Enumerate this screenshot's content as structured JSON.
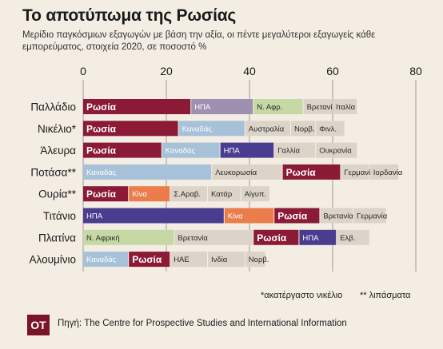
{
  "header": {
    "title": "Το αποτύπωμα της Ρωσίας",
    "subtitle": "Μερίδιο παγκόσμιων εξαγωγών με βάση την αξία, οι πέντε μεγαλύτεροι εξαγωγείς κάθε εμπορεύματος, στοιχεία 2020, σε ποσοστό %"
  },
  "footnotes": {
    "nickel": "*ακατέργαστο νικέλιο",
    "fertilizer": "** λιπάσματα"
  },
  "source": {
    "logo": "ΟΤ",
    "text": "Πηγή: The Centre for Prospective Studies and International Information"
  },
  "colors": {
    "russia": "#8b1a36",
    "usa": "#4a3d8f",
    "canada": "#a7c2d8",
    "south_africa": "#c6d9a4",
    "china": "#ea7d4b",
    "neutral": "#dcd4c8",
    "usa_alt": "#9f8fb0"
  },
  "chart_data": {
    "type": "bar",
    "orientation": "horizontal",
    "stacked": true,
    "x_ticks": [
      0,
      20,
      40,
      60,
      80
    ],
    "xlim": [
      0,
      80
    ],
    "grid": true,
    "rows": [
      {
        "label": "Παλλάδιο",
        "segments": [
          {
            "country": "Ρωσία",
            "value": 26,
            "color": "russia"
          },
          {
            "country": "ΗΠΑ",
            "value": 15,
            "color": "usa_alt"
          },
          {
            "country": "Ν. Αφρ.",
            "value": 12,
            "color": "south_africa"
          },
          {
            "country": "Βρετανία",
            "value": 7,
            "color": "neutral"
          },
          {
            "country": "Ιταλία",
            "value": 6,
            "color": "neutral"
          }
        ]
      },
      {
        "label": "Νικέλιο*",
        "segments": [
          {
            "country": "Ρωσία",
            "value": 23,
            "color": "russia"
          },
          {
            "country": "Καναδάς",
            "value": 16,
            "color": "canada"
          },
          {
            "country": "Αυστραλία",
            "value": 11,
            "color": "neutral"
          },
          {
            "country": "Νορβ.",
            "value": 6,
            "color": "neutral"
          },
          {
            "country": "Φινλ.",
            "value": 7,
            "color": "neutral"
          }
        ]
      },
      {
        "label": "Άλευρα",
        "segments": [
          {
            "country": "Ρωσία",
            "value": 19,
            "color": "russia"
          },
          {
            "country": "Καναδάς",
            "value": 14,
            "color": "canada"
          },
          {
            "country": "ΗΠΑ",
            "value": 13,
            "color": "usa"
          },
          {
            "country": "Γαλλία",
            "value": 10,
            "color": "neutral"
          },
          {
            "country": "Ουκρανία",
            "value": 10,
            "color": "neutral"
          }
        ]
      },
      {
        "label": "Ποτάσα**",
        "segments": [
          {
            "country": "Καναδάς",
            "value": 31,
            "color": "canada"
          },
          {
            "country": "Λευκορωσία",
            "value": 17,
            "color": "neutral"
          },
          {
            "country": "Ρωσία",
            "value": 14,
            "color": "russia"
          },
          {
            "country": "Γερμανία",
            "value": 7,
            "color": "neutral"
          },
          {
            "country": "Ιορδανία",
            "value": 7,
            "color": "neutral"
          }
        ]
      },
      {
        "label": "Ουρία**",
        "segments": [
          {
            "country": "Ρωσία",
            "value": 11,
            "color": "russia"
          },
          {
            "country": "Κίνα",
            "value": 10,
            "color": "china"
          },
          {
            "country": "Σ.Αραβ.",
            "value": 9,
            "color": "neutral"
          },
          {
            "country": "Κατάρ",
            "value": 8,
            "color": "neutral"
          },
          {
            "country": "Αίγυπ.",
            "value": 7,
            "color": "neutral"
          }
        ]
      },
      {
        "label": "Τιτάνιο",
        "segments": [
          {
            "country": "ΗΠΑ",
            "value": 34,
            "color": "usa"
          },
          {
            "country": "Κίνα",
            "value": 12,
            "color": "china"
          },
          {
            "country": "Ρωσία",
            "value": 11,
            "color": "russia"
          },
          {
            "country": "Βρετανία",
            "value": 8,
            "color": "neutral"
          },
          {
            "country": "Γερμανία",
            "value": 8,
            "color": "neutral"
          }
        ]
      },
      {
        "label": "Πλατίνα",
        "segments": [
          {
            "country": "Ν. Αφρική",
            "value": 22,
            "color": "south_africa"
          },
          {
            "country": "Βρετανία",
            "value": 19,
            "color": "neutral"
          },
          {
            "country": "Ρωσία",
            "value": 11,
            "color": "russia"
          },
          {
            "country": "ΗΠΑ",
            "value": 9,
            "color": "usa"
          },
          {
            "country": "Ελβ.",
            "value": 8,
            "color": "neutral"
          }
        ]
      },
      {
        "label": "Αλουμίνιο",
        "segments": [
          {
            "country": "Καναδάς",
            "value": 11,
            "color": "canada"
          },
          {
            "country": "Ρωσία",
            "value": 10,
            "color": "russia"
          },
          {
            "country": "ΗΑΕ",
            "value": 9,
            "color": "neutral"
          },
          {
            "country": "Ινδία",
            "value": 9,
            "color": "neutral"
          },
          {
            "country": "Νορβ.",
            "value": 5,
            "color": "neutral"
          }
        ]
      }
    ]
  }
}
